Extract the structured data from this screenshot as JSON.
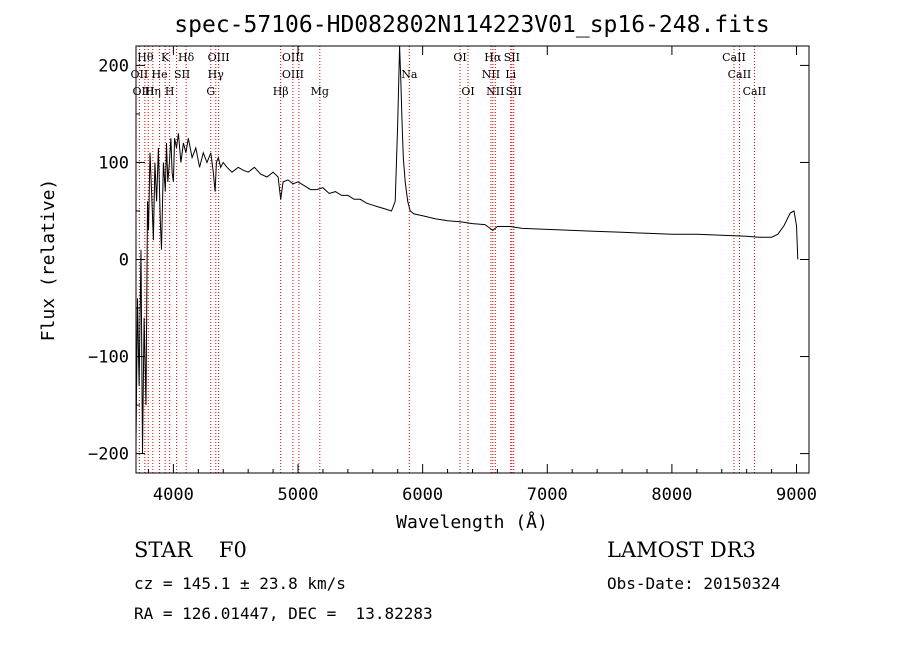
{
  "chart_data": {
    "type": "line",
    "title": "spec-57106-HD082802N114223V01_sp16-248.fits",
    "xlabel": "Wavelength (Å)",
    "ylabel": "Flux (relative)",
    "xlim": [
      3700,
      9100
    ],
    "ylim": [
      -220,
      220
    ],
    "xticks": [
      4000,
      5000,
      6000,
      7000,
      8000,
      9000
    ],
    "yticks": [
      -200,
      -100,
      0,
      100,
      200
    ],
    "series": [
      {
        "name": "flux",
        "x": [
          3700,
          3712,
          3725,
          3740,
          3752,
          3765,
          3780,
          3792,
          3800,
          3812,
          3825,
          3840,
          3852,
          3865,
          3880,
          3895,
          3905,
          3920,
          3935,
          3945,
          3955,
          3968,
          3980,
          3990,
          4000,
          4010,
          4025,
          4040,
          4060,
          4080,
          4100,
          4120,
          4150,
          4180,
          4210,
          4240,
          4270,
          4300,
          4320,
          4335,
          4345,
          4360,
          4380,
          4400,
          4430,
          4470,
          4520,
          4560,
          4600,
          4650,
          4700,
          4750,
          4800,
          4840,
          4861,
          4880,
          4920,
          4960,
          5000,
          5050,
          5100,
          5150,
          5200,
          5250,
          5300,
          5350,
          5400,
          5450,
          5500,
          5550,
          5600,
          5650,
          5700,
          5750,
          5780,
          5800,
          5815,
          5825,
          5835,
          5845,
          5860,
          5880,
          5900,
          5930,
          6000,
          6100,
          6200,
          6300,
          6400,
          6500,
          6563,
          6600,
          6700,
          6800,
          7000,
          7200,
          7400,
          7600,
          7800,
          8000,
          8200,
          8400,
          8600,
          8700,
          8800,
          8850,
          8900,
          8950,
          8980,
          9000,
          9010
        ],
        "values": [
          -190,
          -40,
          -130,
          10,
          -200,
          -60,
          -150,
          60,
          30,
          110,
          70,
          20,
          100,
          60,
          115,
          40,
          10,
          100,
          70,
          120,
          80,
          100,
          125,
          90,
          80,
          125,
          115,
          130,
          100,
          120,
          110,
          125,
          105,
          115,
          95,
          110,
          100,
          110,
          90,
          70,
          100,
          105,
          95,
          100,
          95,
          90,
          95,
          92,
          90,
          95,
          88,
          85,
          90,
          85,
          62,
          80,
          82,
          78,
          80,
          76,
          72,
          72,
          74,
          68,
          70,
          66,
          66,
          62,
          62,
          58,
          56,
          54,
          52,
          50,
          60,
          140,
          220,
          185,
          140,
          105,
          80,
          60,
          50,
          47,
          45,
          42,
          40,
          39,
          37,
          36,
          30,
          34,
          34,
          32,
          31,
          30,
          29,
          28,
          27,
          26,
          26,
          25,
          24,
          23,
          23,
          26,
          35,
          48,
          50,
          35,
          0
        ]
      }
    ],
    "line_marker_wavelengths": [
      3727,
      3771,
      3798,
      3835,
      3889,
      3934,
      3970,
      4026,
      4102,
      4300,
      4340,
      4363,
      4861,
      4959,
      5007,
      5175,
      5893,
      6300,
      6364,
      6548,
      6563,
      6583,
      6707,
      6716,
      6731,
      8498,
      8542,
      8662
    ],
    "line_labels": [
      {
        "text": "Hθ",
        "wl": 3775,
        "row": 1
      },
      {
        "text": "K",
        "wl": 3934,
        "row": 1
      },
      {
        "text": "Hδ",
        "wl": 4102,
        "row": 1
      },
      {
        "text": "OIII",
        "wl": 4363,
        "row": 1
      },
      {
        "text": "OIII",
        "wl": 4959,
        "row": 1
      },
      {
        "text": "OI",
        "wl": 6300,
        "row": 1
      },
      {
        "text": "Hα",
        "wl": 6563,
        "row": 1
      },
      {
        "text": "SII",
        "wl": 6716,
        "row": 1
      },
      {
        "text": "CaII",
        "wl": 8498,
        "row": 1
      },
      {
        "text": "OII",
        "wl": 3727,
        "row": 2
      },
      {
        "text": "He",
        "wl": 3889,
        "row": 2
      },
      {
        "text": "SII",
        "wl": 4070,
        "row": 2
      },
      {
        "text": "Hγ",
        "wl": 4340,
        "row": 2
      },
      {
        "text": "OIII",
        "wl": 4959,
        "row": 2
      },
      {
        "text": "Na",
        "wl": 5893,
        "row": 2
      },
      {
        "text": "NII",
        "wl": 6548,
        "row": 2
      },
      {
        "text": "Li",
        "wl": 6707,
        "row": 2
      },
      {
        "text": "CaII",
        "wl": 8542,
        "row": 2
      },
      {
        "text": "OIII",
        "wl": 3760,
        "row": 3
      },
      {
        "text": "Hη",
        "wl": 3835,
        "row": 3
      },
      {
        "text": "H",
        "wl": 3970,
        "row": 3
      },
      {
        "text": "G",
        "wl": 4300,
        "row": 3
      },
      {
        "text": "Hβ",
        "wl": 4861,
        "row": 3
      },
      {
        "text": "Mg",
        "wl": 5175,
        "row": 3
      },
      {
        "text": "OI",
        "wl": 6364,
        "row": 3
      },
      {
        "text": "NII",
        "wl": 6583,
        "row": 3
      },
      {
        "text": "SII",
        "wl": 6731,
        "row": 3
      },
      {
        "text": "CaII",
        "wl": 8662,
        "row": 3
      }
    ]
  },
  "info": {
    "class_line": "STAR    F0",
    "survey": "LAMOST DR3",
    "cz": "cz = 145.1 ± 23.8 km/s",
    "obs_date": "Obs-Date: 20150324",
    "coords": "RA = 126.01447, DEC =  13.82283"
  }
}
